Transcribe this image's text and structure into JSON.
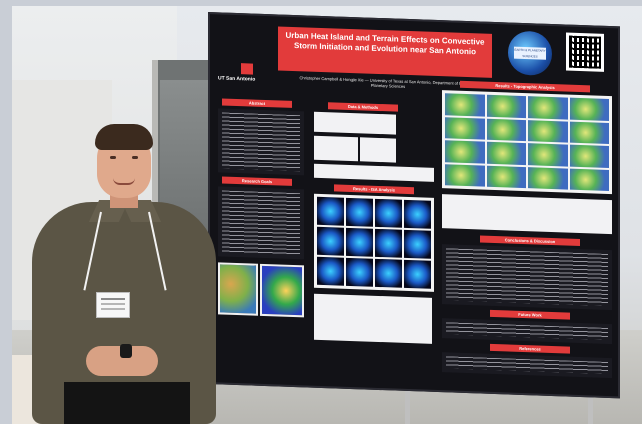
{
  "poster": {
    "title": "Urban Heat Island and Terrain Effects on Convective Storm Initiation and Evolution near San Antonio",
    "authors": "Christopher Campbell & Hongjie Xie — University of Texas at San Antonio, Department of Earth and Planetary Sciences",
    "logo_text": "UT San Antonio",
    "sections": [
      "Abstract",
      "Research Goals",
      "Data & Methods",
      "Results - ISA Analysis",
      "Results - Topographic Analysis",
      "Conclusions & Discussion",
      "Future Work",
      "References"
    ],
    "globe_label": "EARTH & PLANETARY SCIENCES"
  },
  "colors": {
    "poster_background": "#121217",
    "header_red": "#e23b3b",
    "shirt": "#5b5545"
  },
  "icons": [
    "qr-code-icon",
    "utsa-logo-icon",
    "globe-logo-icon"
  ]
}
